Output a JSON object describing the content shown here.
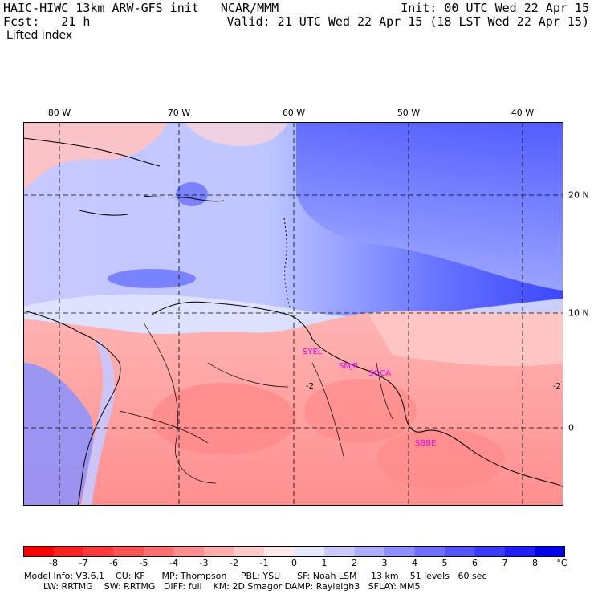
{
  "header": {
    "left_line1": "HAIC-HIWC 13km ARW-GFS init   NCAR/MMM",
    "left_line2": "Fcst:   21 h",
    "field_name": "Lifted index",
    "right_line1": "Init: 00 UTC Wed 22 Apr 15",
    "right_line2": "Valid: 21 UTC Wed 22 Apr 15 (18 LST Wed 22 Apr 15)"
  },
  "map": {
    "lon_labels": [
      "80 W",
      "70 W",
      "60 W",
      "50 W",
      "40 W"
    ],
    "lat_labels": [
      "20 N",
      "10 N",
      "0"
    ],
    "stations": [
      "SYEL",
      "SMJP",
      "SOCA",
      "SBBE"
    ],
    "station_color": "#ee00ee",
    "grid_style": "dashed"
  },
  "colorbar": {
    "labels": [
      "-8",
      "-7",
      "-6",
      "-5",
      "-4",
      "-3",
      "-2",
      "-1",
      "0",
      "1",
      "2",
      "3",
      "4",
      "5",
      "6",
      "7",
      "8",
      "°C"
    ],
    "colors": [
      "#ff0000",
      "#ff2020",
      "#ff3b3b",
      "#ff5555",
      "#ff7070",
      "#ff8f8f",
      "#ffadad",
      "#ffcaca",
      "#ffe8e8",
      "#e8e8ff",
      "#cacaff",
      "#adadff",
      "#8f8fff",
      "#7070ff",
      "#5555ff",
      "#3b3bff",
      "#2020ff",
      "#0000ee"
    ]
  },
  "footer": {
    "line1": "Model Info: V3.6.1    CU: KF      MP: Thompson     PBL: YSU      SF: Noah LSM     13 km    51 levels   60 sec",
    "line2": "LW: RRTMG    SW: RRTMG   DIFF: full    KM: 2D Smagor DAMP: Rayleigh3   SFLAY: MM5"
  }
}
